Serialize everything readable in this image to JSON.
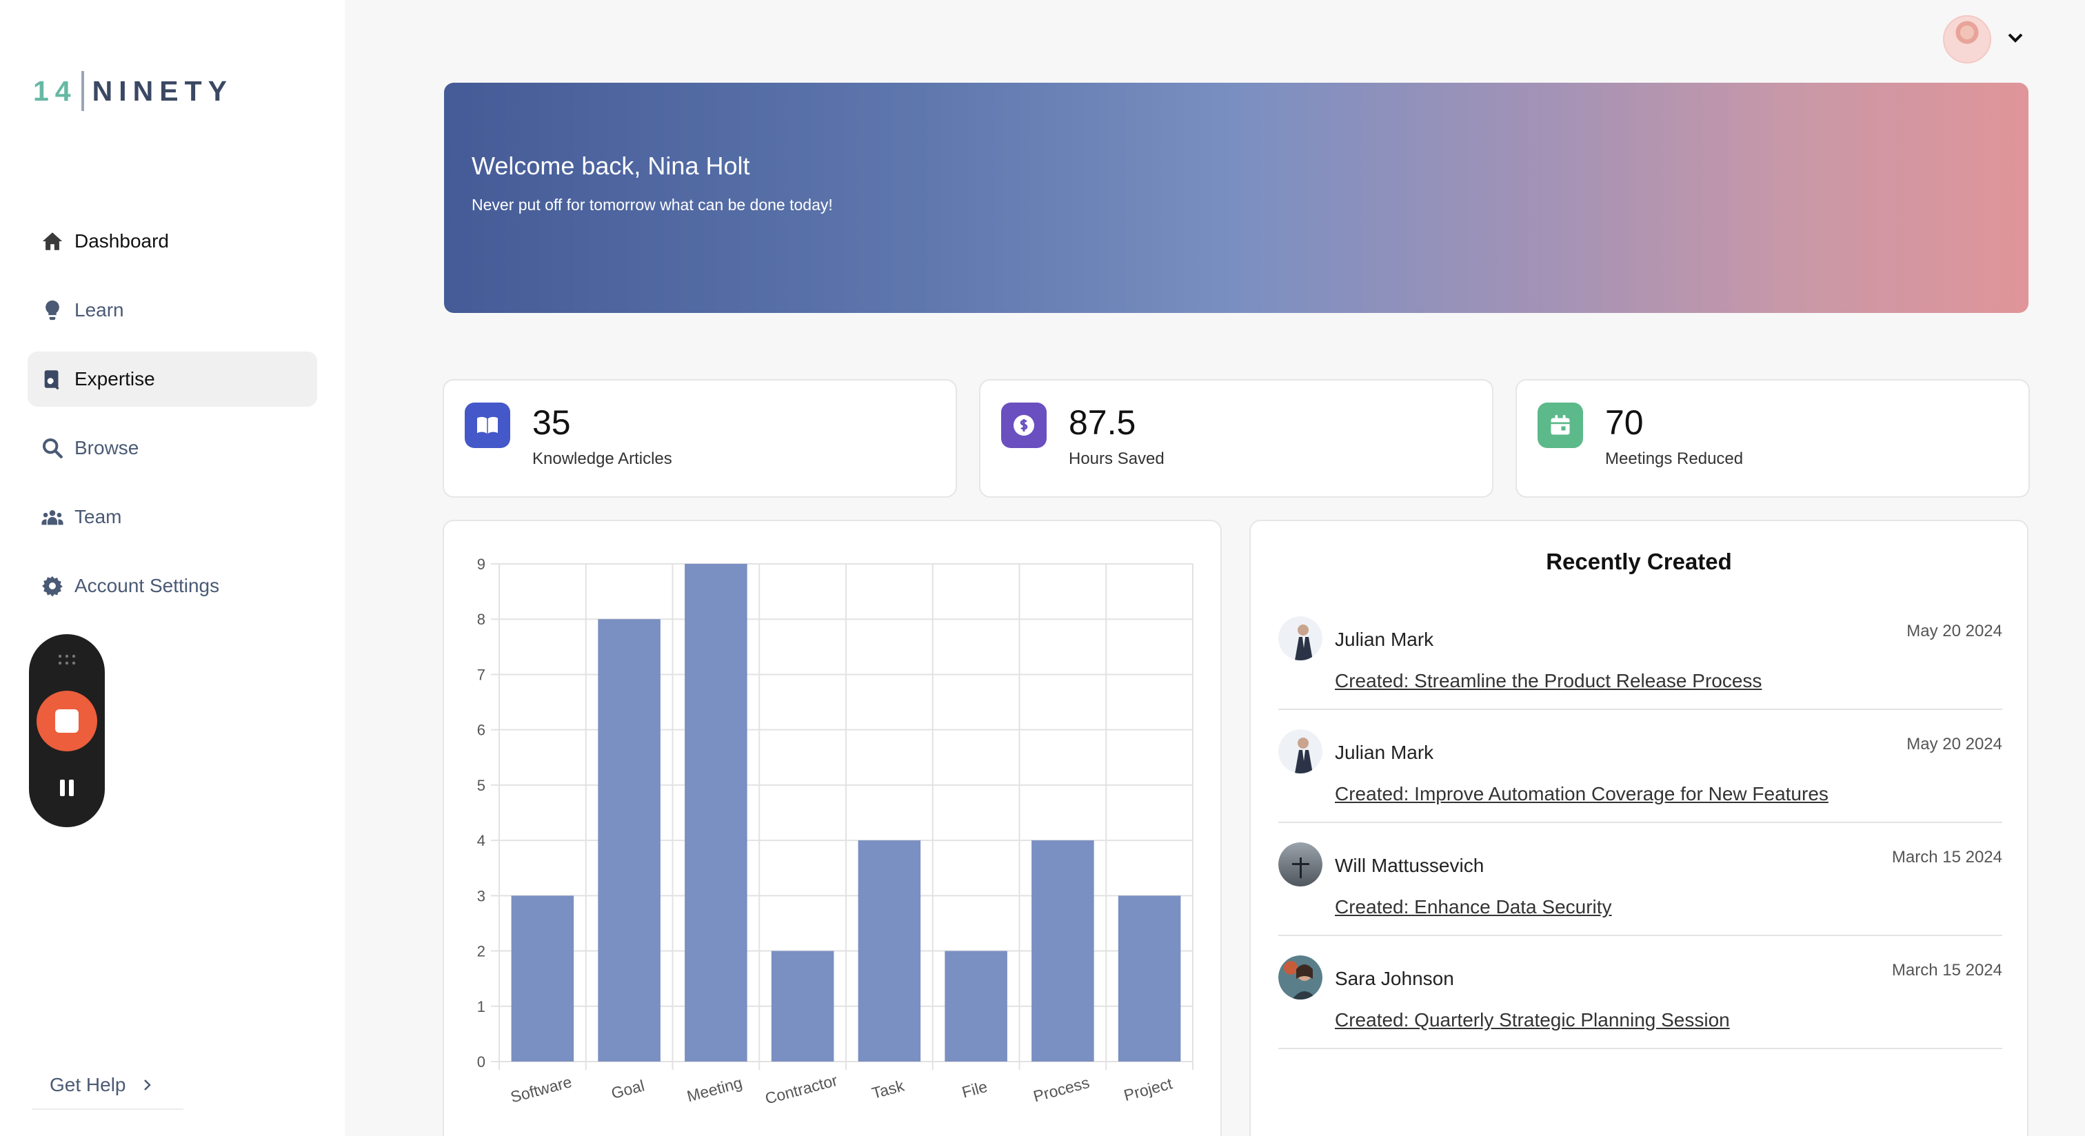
{
  "brand": {
    "num": "14",
    "word": "NINETY"
  },
  "nav": {
    "items": [
      {
        "label": "Dashboard",
        "icon": "home-icon"
      },
      {
        "label": "Learn",
        "icon": "lightbulb-icon"
      },
      {
        "label": "Expertise",
        "icon": "expertise-icon"
      },
      {
        "label": "Browse",
        "icon": "search-icon"
      },
      {
        "label": "Team",
        "icon": "team-icon"
      },
      {
        "label": "Account Settings",
        "icon": "gear-icon"
      }
    ],
    "active": "Expertise"
  },
  "help": {
    "label": "Get Help"
  },
  "banner": {
    "title": "Welcome back, Nina Holt",
    "subtitle": "Never put off for tomorrow what can be done today!"
  },
  "stats": [
    {
      "value": "35",
      "label": "Knowledge Articles",
      "icon": "book-icon",
      "color": "#4458c9"
    },
    {
      "value": "87.5",
      "label": "Hours Saved",
      "icon": "dollar-icon",
      "color": "#6a4fc0"
    },
    {
      "value": "70",
      "label": "Meetings Reduced",
      "icon": "calendar-icon",
      "color": "#5cb98a"
    }
  ],
  "chart_data": {
    "type": "bar",
    "categories": [
      "Software",
      "Goal",
      "Meeting",
      "Contractor",
      "Task",
      "File",
      "Process",
      "Project"
    ],
    "values": [
      3,
      8,
      9,
      2,
      4,
      2,
      4,
      3
    ],
    "ylim": [
      0,
      9
    ],
    "yticks": [
      0,
      1,
      2,
      3,
      4,
      5,
      6,
      7,
      8,
      9
    ],
    "grid": true,
    "bar_color": "#7a8fc2"
  },
  "recent": {
    "title": "Recently Created",
    "items": [
      {
        "name": "Julian Mark",
        "date": "May 20 2024",
        "link": "Created: Streamline the Product Release Process"
      },
      {
        "name": "Julian Mark",
        "date": "May 20 2024",
        "link": "Created: Improve Automation Coverage for New Features"
      },
      {
        "name": "Will Mattussevich",
        "date": "March 15 2024",
        "link": "Created: Enhance Data Security"
      },
      {
        "name": "Sara Johnson",
        "date": "March 15 2024",
        "link": "Created: Quarterly Strategic Planning Session"
      }
    ]
  }
}
